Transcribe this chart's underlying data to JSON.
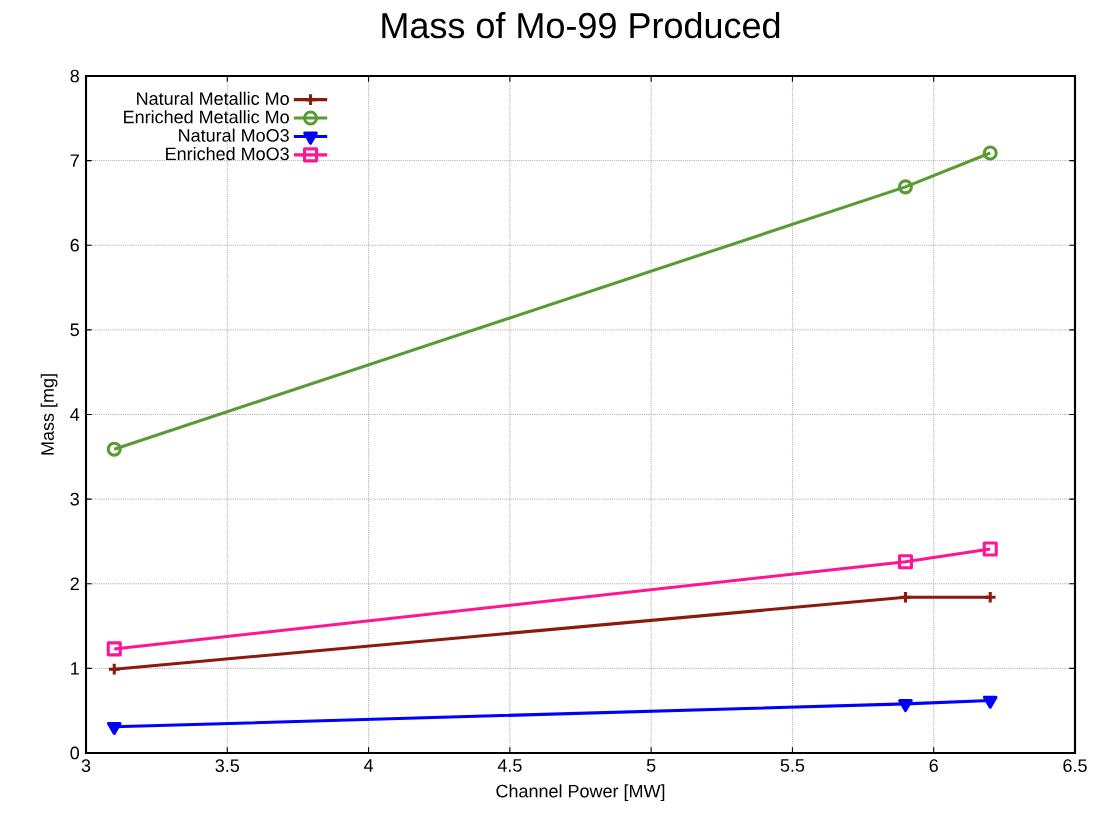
{
  "chart_data": {
    "type": "line",
    "title": "Mass of Mo-99 Produced",
    "xlabel": "Channel Power [MW]",
    "ylabel": "Mass [mg]",
    "x": [
      3.1,
      5.9,
      6.2
    ],
    "series": [
      {
        "name": "Natural Metallic Mo",
        "color": "#8b1a0e",
        "marker": "cross",
        "values": [
          0.99,
          1.84,
          1.84
        ]
      },
      {
        "name": "Enriched Metallic Mo",
        "color": "#5a9a32",
        "marker": "circle",
        "values": [
          3.59,
          6.69,
          7.09
        ]
      },
      {
        "name": "Natural MoO3",
        "color": "#0000ff",
        "marker": "triangle",
        "values": [
          0.31,
          0.58,
          0.62
        ]
      },
      {
        "name": "Enriched MoO3",
        "color": "#ff1493",
        "marker": "square",
        "values": [
          1.23,
          2.26,
          2.41
        ]
      }
    ],
    "xlim": [
      3,
      6.5
    ],
    "xticks": [
      3,
      3.5,
      4,
      4.5,
      5,
      5.5,
      6,
      6.5
    ],
    "ylim": [
      0,
      8
    ],
    "yticks": [
      0,
      1,
      2,
      3,
      4,
      5,
      6,
      7,
      8
    ],
    "grid": true,
    "legend": "top left",
    "line_style": "solid"
  }
}
